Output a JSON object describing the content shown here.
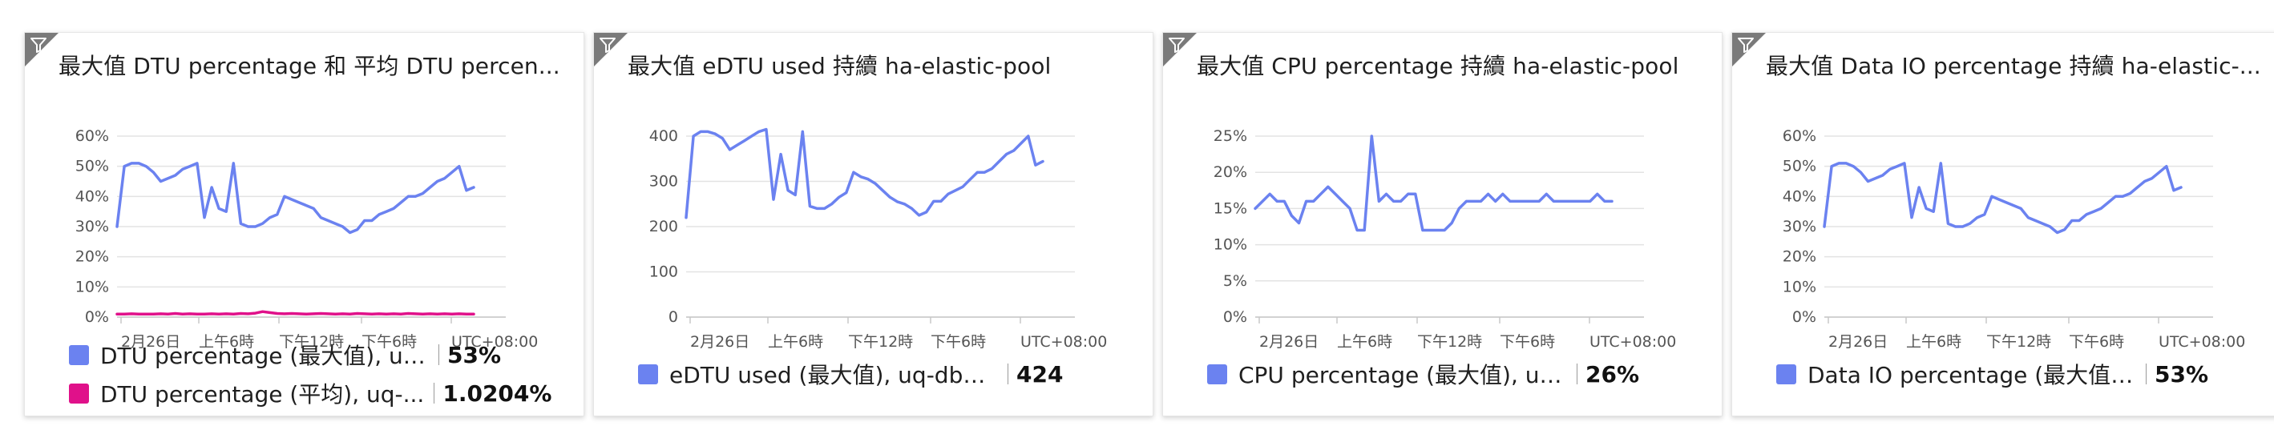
{
  "tiles": [
    {
      "title": "最大值 DTU percentage 和 平均 DTU percen...",
      "filter_icon": "filter-icon",
      "legend": [
        {
          "label": "DTU percentage (最大值), uq-d...",
          "value": "53%",
          "color": "#6b82f0"
        },
        {
          "label": "DTU percentage (平均), uq-...",
          "value": "1.0204%",
          "color": "#e0118a"
        }
      ]
    },
    {
      "title": "最大值 eDTU used 持續 ha-elastic-pool",
      "filter_icon": "filter-icon",
      "legend": [
        {
          "label": "eDTU used (最大值), uq-db1-v...",
          "value": "424",
          "color": "#6b82f0"
        }
      ]
    },
    {
      "title": "最大值 CPU percentage 持續 ha-elastic-pool",
      "filter_icon": "filter-icon",
      "legend": [
        {
          "label": "CPU percentage (最大值), uq-d...",
          "value": "26%",
          "color": "#6b82f0"
        }
      ]
    },
    {
      "title": "最大值 Data IO percentage 持續 ha-elastic-...",
      "filter_icon": "filter-icon",
      "legend": [
        {
          "label": "Data IO percentage (最大值), u...",
          "value": "53%",
          "color": "#6b82f0"
        }
      ]
    }
  ],
  "chart_data": [
    {
      "type": "line",
      "x_tick_labels": [
        "2月26日",
        "上午6時",
        "下午12時",
        "下午6時",
        "UTC+08:00"
      ],
      "y_tick_labels": [
        "60%",
        "50%",
        "40%",
        "30%",
        "20%",
        "10%",
        "0%"
      ],
      "ylim": [
        0,
        60
      ],
      "grid": true,
      "series": [
        {
          "name": "DTU percentage (最大值), uq-d...",
          "color": "#6b82f0",
          "values": [
            30,
            50,
            51,
            51,
            50,
            48,
            45,
            46,
            47,
            49,
            50,
            51,
            33,
            43,
            36,
            35,
            51,
            31,
            30,
            30,
            31,
            33,
            34,
            40,
            39,
            38,
            37,
            36,
            33,
            32,
            31,
            30,
            28,
            29,
            32,
            32,
            34,
            35,
            36,
            38,
            40,
            40,
            41,
            43,
            45,
            46,
            48,
            50,
            42,
            43
          ]
        },
        {
          "name": "DTU percentage (平均), uq-...",
          "color": "#e0118a",
          "values": [
            1.0,
            1.0,
            1.1,
            1.0,
            1.0,
            1.0,
            1.1,
            1.0,
            1.2,
            1.0,
            1.1,
            1.0,
            1.0,
            1.1,
            1.0,
            1.1,
            1.0,
            1.2,
            1.1,
            1.3,
            1.8,
            1.5,
            1.2,
            1.1,
            1.2,
            1.1,
            1.0,
            1.1,
            1.2,
            1.1,
            1.0,
            1.1,
            1.0,
            1.2,
            1.1,
            1.0,
            1.1,
            1.0,
            1.1,
            1.0,
            1.2,
            1.1,
            1.0,
            1.1,
            1.0,
            1.1,
            1.0,
            1.1,
            1.0,
            1.0
          ]
        }
      ]
    },
    {
      "type": "line",
      "x_tick_labels": [
        "2月26日",
        "上午6時",
        "下午12時",
        "下午6時",
        "UTC+08:00"
      ],
      "y_tick_labels": [
        "400",
        "300",
        "200",
        "100",
        "0"
      ],
      "ylim": [
        0,
        400
      ],
      "grid": true,
      "series": [
        {
          "name": "eDTU used (最大值), uq-db1-v...",
          "color": "#6b82f0",
          "values": [
            220,
            400,
            410,
            410,
            405,
            395,
            370,
            380,
            390,
            400,
            410,
            415,
            260,
            360,
            280,
            270,
            410,
            245,
            240,
            240,
            250,
            265,
            275,
            320,
            310,
            305,
            295,
            280,
            265,
            255,
            250,
            240,
            225,
            232,
            256,
            256,
            272,
            280,
            288,
            304,
            320,
            320,
            328,
            344,
            360,
            368,
            384,
            400,
            336,
            344
          ]
        }
      ]
    },
    {
      "type": "line",
      "x_tick_labels": [
        "2月26日",
        "上午6時",
        "下午12時",
        "下午6時",
        "UTC+08:00"
      ],
      "y_tick_labels": [
        "25%",
        "20%",
        "15%",
        "10%",
        "5%",
        "0%"
      ],
      "ylim": [
        0,
        25
      ],
      "grid": true,
      "series": [
        {
          "name": "CPU percentage (最大值), uq-d...",
          "color": "#6b82f0",
          "values": [
            15,
            16,
            17,
            16,
            16,
            14,
            13,
            16,
            16,
            17,
            18,
            17,
            16,
            15,
            12,
            12,
            25,
            16,
            17,
            16,
            16,
            17,
            17,
            12,
            12,
            12,
            12,
            13,
            15,
            16,
            16,
            16,
            17,
            16,
            17,
            16,
            16,
            16,
            16,
            16,
            17,
            16,
            16,
            16,
            16,
            16,
            16,
            17,
            16,
            16
          ]
        }
      ]
    },
    {
      "type": "line",
      "x_tick_labels": [
        "2月26日",
        "上午6時",
        "下午12時",
        "下午6時",
        "UTC+08:00"
      ],
      "y_tick_labels": [
        "60%",
        "50%",
        "40%",
        "30%",
        "20%",
        "10%",
        "0%"
      ],
      "ylim": [
        0,
        60
      ],
      "grid": true,
      "series": [
        {
          "name": "Data IO percentage (最大值), u...",
          "color": "#6b82f0",
          "values": [
            30,
            50,
            51,
            51,
            50,
            48,
            45,
            46,
            47,
            49,
            50,
            51,
            33,
            43,
            36,
            35,
            51,
            31,
            30,
            30,
            31,
            33,
            34,
            40,
            39,
            38,
            37,
            36,
            33,
            32,
            31,
            30,
            28,
            29,
            32,
            32,
            34,
            35,
            36,
            38,
            40,
            40,
            41,
            43,
            45,
            46,
            48,
            50,
            42,
            43
          ]
        }
      ]
    }
  ]
}
